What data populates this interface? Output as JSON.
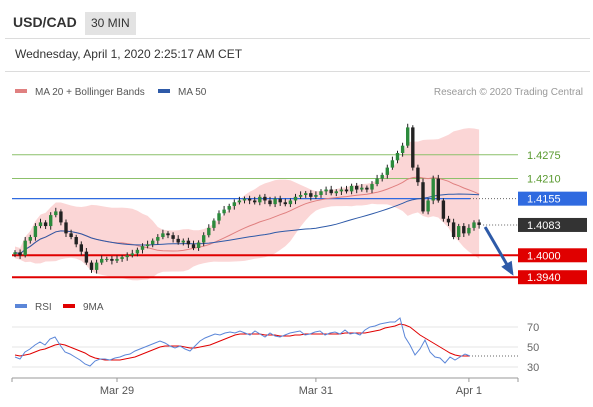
{
  "header": {
    "symbol": "USD/CAD",
    "timeframe": "30 MIN"
  },
  "datetime": "Wednesday, April 1, 2020 2:25:17 AM CET",
  "colors": {
    "ma20": "#e08080",
    "band": "#f9c8c8",
    "ma50": "#2e5aa8",
    "resistance": "#8cc06a",
    "support": "#e00000",
    "pivot": "#2f6ae0",
    "current": "#333333",
    "rsi": "#5b86d8",
    "rsi_ma": "#e00000",
    "arrow": "#2e5aa8"
  },
  "chart_data": [
    {
      "type": "candlestick",
      "legend": [
        {
          "name": "MA 20 + Bollinger Bands",
          "color": "#e08080"
        },
        {
          "name": "MA 50",
          "color": "#2e5aa8"
        }
      ],
      "credit": "Research © 2020 Trading Central",
      "ylim": [
        1.3905,
        1.4425
      ],
      "xticks": [
        {
          "label": "Mar 29",
          "index": 20
        },
        {
          "label": "Mar 31",
          "index": 59
        },
        {
          "label": "Apr 1",
          "index": 89
        }
      ],
      "levels": [
        {
          "value": 1.4275,
          "label": "1.4275",
          "kind": "resistance"
        },
        {
          "value": 1.421,
          "label": "1.4210",
          "kind": "resistance"
        },
        {
          "value": 1.4155,
          "label": "1.4155",
          "kind": "pivot"
        },
        {
          "value": 1.4083,
          "label": "1.4083",
          "kind": "current"
        },
        {
          "value": 1.4,
          "label": "1.4000",
          "kind": "support"
        },
        {
          "value": 1.394,
          "label": "1.3940",
          "kind": "support"
        }
      ],
      "closes": [
        1.4008,
        1.4,
        1.404,
        1.405,
        1.408,
        1.409,
        1.408,
        1.411,
        1.412,
        1.409,
        1.406,
        1.405,
        1.403,
        1.401,
        1.398,
        1.396,
        1.398,
        1.399,
        1.399,
        1.3985,
        1.399,
        1.3995,
        1.4,
        1.4005,
        1.4015,
        1.4025,
        1.403,
        1.404,
        1.405,
        1.406,
        1.4055,
        1.4045,
        1.4035,
        1.404,
        1.403,
        1.402,
        1.4035,
        1.4055,
        1.4075,
        1.4095,
        1.4115,
        1.4125,
        1.4135,
        1.4145,
        1.415,
        1.4155,
        1.415,
        1.4145,
        1.416,
        1.415,
        1.414,
        1.4155,
        1.4145,
        1.414,
        1.415,
        1.416,
        1.4165,
        1.417,
        1.416,
        1.4165,
        1.4175,
        1.418,
        1.417,
        1.4175,
        1.418,
        1.4175,
        1.419,
        1.418,
        1.4185,
        1.418,
        1.4195,
        1.421,
        1.422,
        1.424,
        1.426,
        1.428,
        1.43,
        1.435,
        1.424,
        1.42,
        1.412,
        1.415,
        1.421,
        1.415,
        1.41,
        1.409,
        1.405,
        1.408,
        1.406,
        1.4075,
        1.409,
        1.4083
      ],
      "ohlc_note": "close values per 30-minute bar",
      "projection": {
        "from": 1.4083,
        "to": 1.394
      }
    },
    {
      "type": "line",
      "legend": [
        {
          "name": "RSI",
          "color": "#5b86d8"
        },
        {
          "name": "9MA",
          "color": "#e00000"
        }
      ],
      "ylim": [
        24,
        82
      ],
      "yticks": [
        70,
        50,
        30
      ],
      "rsi": [
        40,
        38,
        45,
        48,
        52,
        55,
        52,
        58,
        60,
        52,
        45,
        43,
        40,
        37,
        33,
        31,
        36,
        38,
        38,
        37,
        39,
        40,
        42,
        43,
        46,
        48,
        50,
        52,
        54,
        56,
        54,
        51,
        49,
        51,
        48,
        46,
        51,
        56,
        59,
        61,
        63,
        62,
        64,
        65,
        64,
        66,
        64,
        62,
        66,
        63,
        60,
        64,
        61,
        60,
        62,
        64,
        65,
        66,
        62,
        63,
        65,
        66,
        62,
        64,
        65,
        63,
        67,
        63,
        64,
        62,
        67,
        70,
        71,
        73,
        74,
        75,
        75,
        79,
        60,
        52,
        42,
        48,
        57,
        45,
        40,
        39,
        34,
        40,
        37,
        40,
        43,
        41
      ],
      "ma9": [
        42,
        41,
        42,
        43,
        45,
        47,
        48,
        50,
        52,
        53,
        52,
        50,
        48,
        46,
        44,
        41,
        39,
        38,
        37,
        37,
        37,
        37,
        38,
        39,
        40,
        42,
        44,
        46,
        48,
        50,
        51,
        51,
        51,
        51,
        50,
        49,
        49,
        50,
        51,
        52,
        54,
        56,
        58,
        60,
        62,
        63,
        63,
        63,
        63,
        63,
        62,
        62,
        62,
        61,
        61,
        61,
        62,
        62,
        63,
        63,
        63,
        63,
        63,
        63,
        63,
        63,
        64,
        64,
        64,
        64,
        64,
        65,
        66,
        67,
        69,
        70,
        71,
        73,
        72,
        70,
        66,
        62,
        59,
        56,
        53,
        50,
        47,
        44,
        42,
        41,
        41,
        41
      ]
    }
  ]
}
